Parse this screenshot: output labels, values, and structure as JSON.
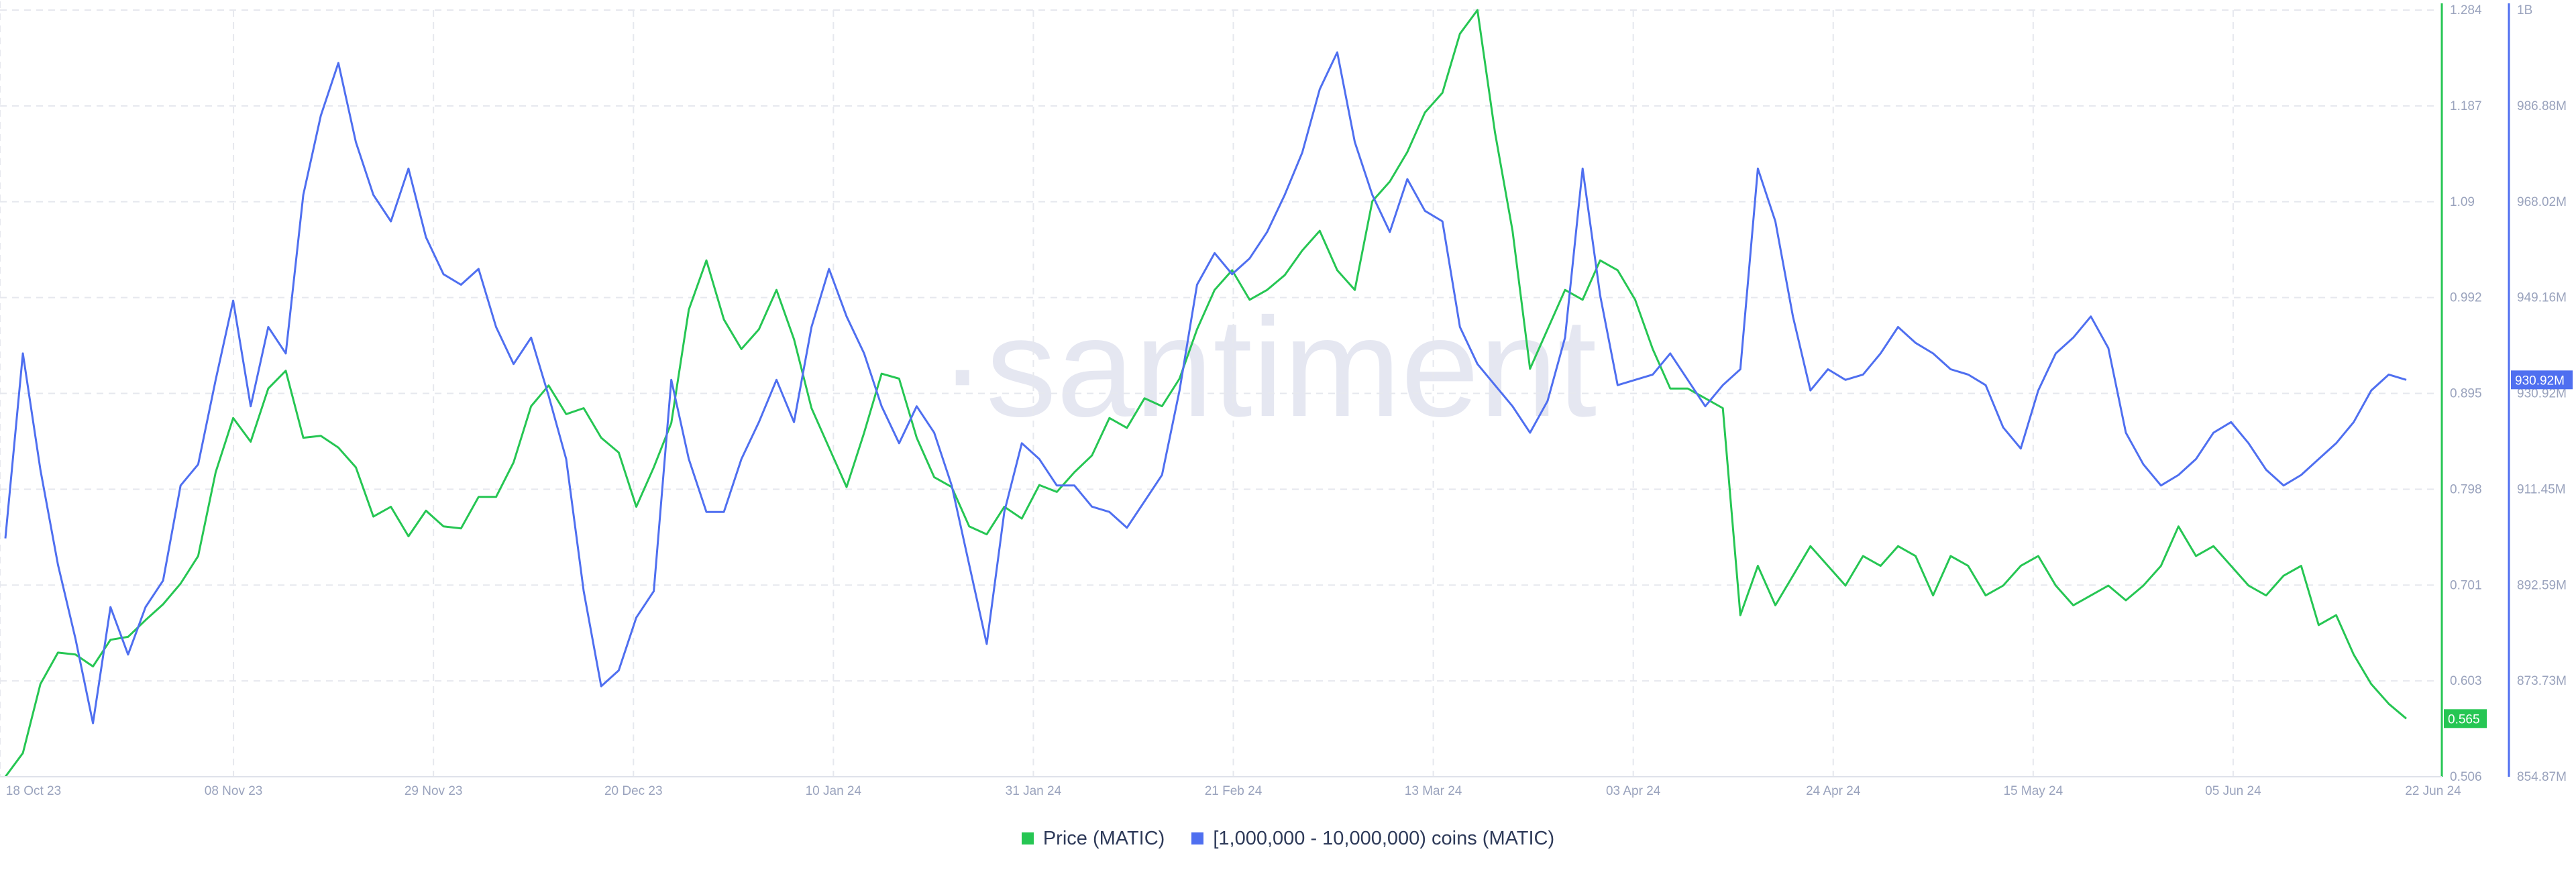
{
  "watermark": "·santiment",
  "colors": {
    "price": "#26c653",
    "holders": "#4f6ff0",
    "grid": "#e6e8ee",
    "tick": "#9aa3bd"
  },
  "legend": {
    "price_label": "Price (MATIC)",
    "holders_label": "[1,000,000 - 10,000,000) coins (MATIC)"
  },
  "chart_data": {
    "type": "line",
    "x_ticks": [
      "18 Oct 23",
      "08 Nov 23",
      "29 Nov 23",
      "20 Dec 23",
      "10 Jan 24",
      "31 Jan 24",
      "21 Feb 24",
      "13 Mar 24",
      "03 Apr 24",
      "24 Apr 24",
      "15 May 24",
      "05 Jun 24",
      "22 Jun 24"
    ],
    "price_axis": {
      "ticks": [
        "1.284",
        "1.187",
        "1.09",
        "0.992",
        "0.895",
        "0.798",
        "0.701",
        "0.603",
        "0.506"
      ],
      "ylim": [
        0.506,
        1.284
      ]
    },
    "holders_axis": {
      "ticks": [
        "1B",
        "986.88M",
        "968.02M",
        "949.16M",
        "930.92M",
        "911.45M",
        "892.59M",
        "873.73M",
        "854.87M"
      ],
      "ylim": [
        854.87,
        1000
      ]
    },
    "last_values": {
      "price": "0.565",
      "holders": "930.92M"
    },
    "series": [
      {
        "name": "Price (MATIC)",
        "x_start": "2023-10-18",
        "x_end": "2024-06-22",
        "values": [
          0.506,
          0.53,
          0.6,
          0.632,
          0.63,
          0.618,
          0.645,
          0.648,
          0.665,
          0.681,
          0.702,
          0.73,
          0.815,
          0.87,
          0.846,
          0.9,
          0.918,
          0.85,
          0.852,
          0.84,
          0.82,
          0.77,
          0.78,
          0.75,
          0.776,
          0.76,
          0.758,
          0.79,
          0.79,
          0.825,
          0.882,
          0.903,
          0.874,
          0.88,
          0.85,
          0.835,
          0.78,
          0.82,
          0.865,
          0.98,
          1.03,
          0.97,
          0.94,
          0.96,
          1.0,
          0.95,
          0.88,
          0.84,
          0.8,
          0.855,
          0.915,
          0.91,
          0.85,
          0.81,
          0.8,
          0.76,
          0.752,
          0.78,
          0.768,
          0.802,
          0.795,
          0.815,
          0.832,
          0.87,
          0.86,
          0.89,
          0.882,
          0.91,
          0.96,
          1.0,
          1.02,
          0.99,
          1.0,
          1.015,
          1.04,
          1.06,
          1.02,
          1.0,
          1.09,
          1.11,
          1.14,
          1.18,
          1.2,
          1.26,
          1.284,
          1.16,
          1.06,
          0.92,
          0.96,
          1.0,
          0.99,
          1.03,
          1.02,
          0.99,
          0.94,
          0.9,
          0.9,
          0.89,
          0.88,
          0.67,
          0.72,
          0.68,
          0.71,
          0.74,
          0.72,
          0.7,
          0.73,
          0.72,
          0.74,
          0.73,
          0.69,
          0.73,
          0.72,
          0.69,
          0.7,
          0.72,
          0.73,
          0.7,
          0.68,
          0.69,
          0.7,
          0.685,
          0.7,
          0.72,
          0.76,
          0.73,
          0.74,
          0.72,
          0.7,
          0.69,
          0.71,
          0.72,
          0.66,
          0.67,
          0.63,
          0.6,
          0.58,
          0.565
        ]
      },
      {
        "name": "[1,000,000 - 10,000,000) coins (MATIC)",
        "x_start": "2023-10-18",
        "x_end": "2024-06-22",
        "values": [
          900,
          935,
          913,
          895,
          881,
          865,
          887,
          878,
          887,
          892,
          910,
          914,
          930,
          945,
          925,
          940,
          935,
          965,
          980,
          990,
          975,
          965,
          960,
          970,
          957,
          950,
          948,
          951,
          940,
          933,
          938,
          927,
          915,
          890,
          872,
          875,
          885,
          890,
          930,
          915,
          905,
          905,
          915,
          922,
          930,
          922,
          940,
          951,
          942,
          935,
          925,
          918,
          925,
          920,
          910,
          895,
          880,
          905,
          918,
          915,
          910,
          910,
          906,
          905,
          902,
          907,
          912,
          928,
          948,
          954,
          950,
          953,
          958,
          965,
          973,
          985,
          992,
          975,
          965,
          958,
          968,
          962,
          960,
          940,
          933,
          929,
          925,
          920,
          926,
          938,
          970,
          946,
          929,
          930,
          931,
          935,
          930,
          925,
          929,
          932,
          970,
          960,
          942,
          928,
          932,
          930,
          931,
          935,
          940,
          937,
          935,
          932,
          931,
          929,
          921,
          917,
          928,
          935,
          938,
          942,
          936,
          920,
          914,
          910,
          912,
          915,
          920,
          922,
          918,
          913,
          910,
          912,
          915,
          918,
          922,
          928,
          931,
          930
        ]
      }
    ]
  }
}
